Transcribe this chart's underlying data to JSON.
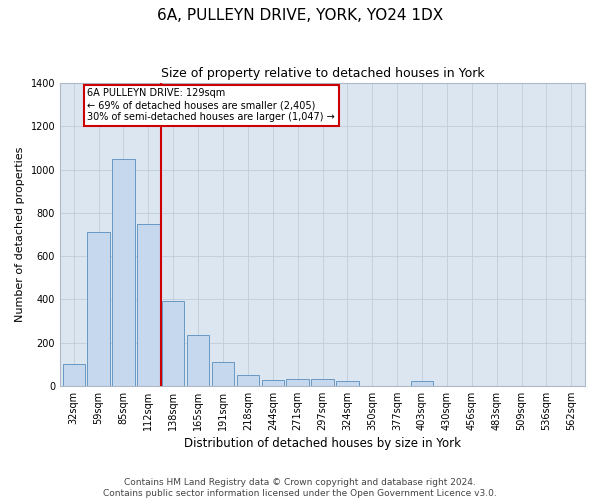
{
  "title": "6A, PULLEYN DRIVE, YORK, YO24 1DX",
  "subtitle": "Size of property relative to detached houses in York",
  "xlabel": "Distribution of detached houses by size in York",
  "ylabel": "Number of detached properties",
  "categories": [
    "32sqm",
    "59sqm",
    "85sqm",
    "112sqm",
    "138sqm",
    "165sqm",
    "191sqm",
    "218sqm",
    "244sqm",
    "271sqm",
    "297sqm",
    "324sqm",
    "350sqm",
    "377sqm",
    "403sqm",
    "430sqm",
    "456sqm",
    "483sqm",
    "509sqm",
    "536sqm",
    "562sqm"
  ],
  "values": [
    100,
    710,
    1050,
    750,
    390,
    235,
    110,
    50,
    25,
    30,
    30,
    20,
    0,
    0,
    20,
    0,
    0,
    0,
    0,
    0,
    0
  ],
  "bar_color": "#c5d8ee",
  "bar_edge_color": "#6899c4",
  "vline_color": "#cc0000",
  "annotation_text": "6A PULLEYN DRIVE: 129sqm\n← 69% of detached houses are smaller (2,405)\n30% of semi-detached houses are larger (1,047) →",
  "annotation_box_color": "#ffffff",
  "annotation_box_edge_color": "#cc0000",
  "ylim": [
    0,
    1400
  ],
  "yticks": [
    0,
    200,
    400,
    600,
    800,
    1000,
    1200,
    1400
  ],
  "footer": "Contains HM Land Registry data © Crown copyright and database right 2024.\nContains public sector information licensed under the Open Government Licence v3.0.",
  "plot_bg_color": "#dce6f0",
  "title_fontsize": 11,
  "subtitle_fontsize": 9,
  "axis_label_fontsize": 8,
  "tick_fontsize": 7,
  "footer_fontsize": 6.5
}
